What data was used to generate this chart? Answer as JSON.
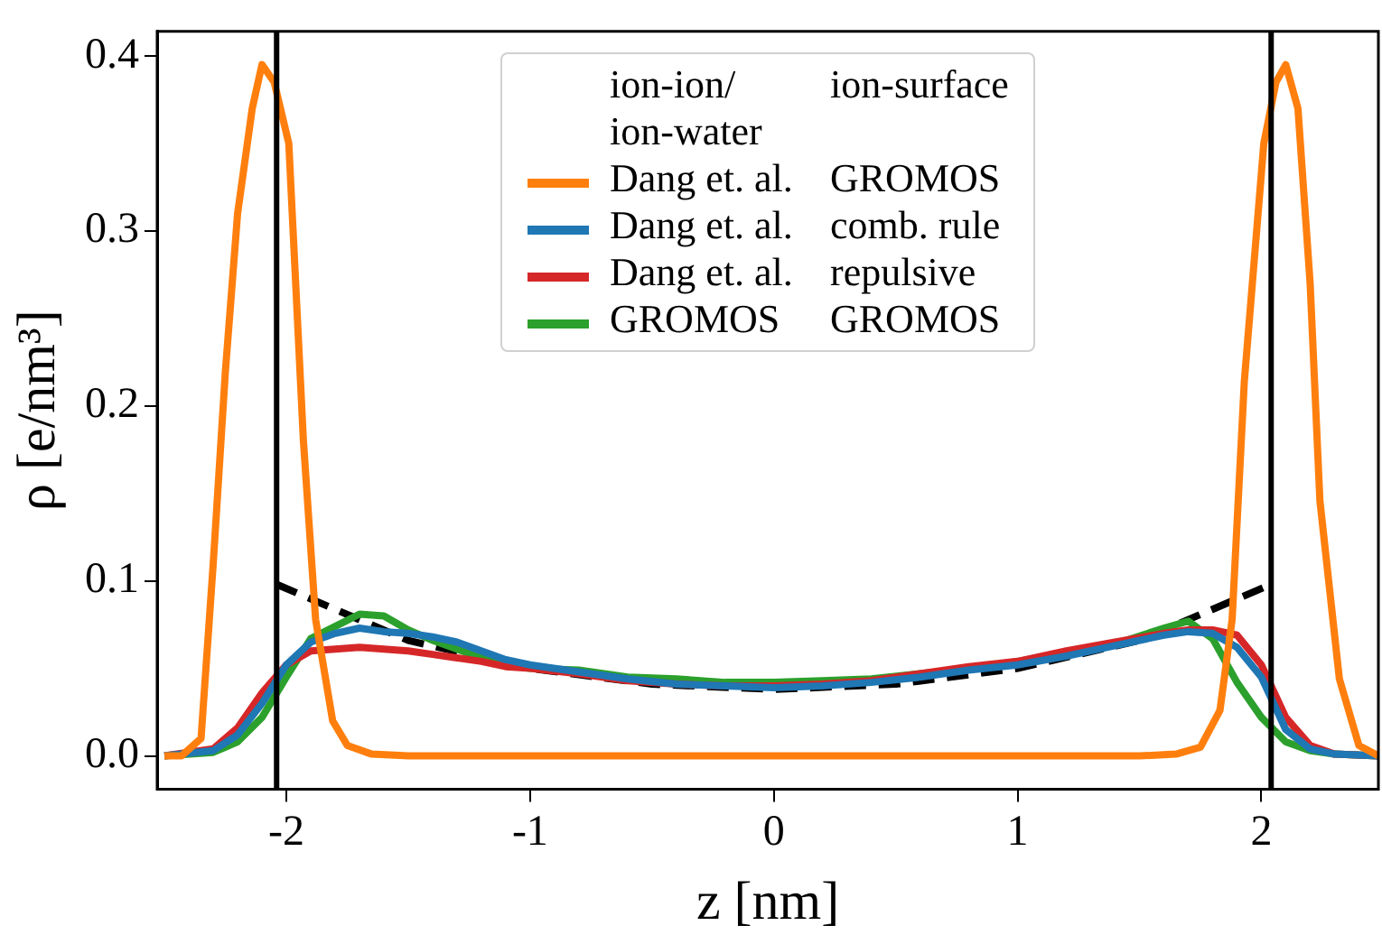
{
  "chart_data": {
    "type": "line",
    "xlabel": "z [nm]",
    "ylabel": "ρ [e/nm³]",
    "legend_title": "ion-ion/ ion-water  ion-surface",
    "xlim": [
      -2.53,
      2.48
    ],
    "xticks": [
      -2,
      -1,
      0,
      1,
      2
    ],
    "ylim": [
      -0.019,
      0.414
    ],
    "yticks": [
      {
        "value": 0,
        "label": "0.0"
      },
      0.1,
      0.2,
      0.3,
      0.4
    ],
    "grid": false,
    "legend": "top",
    "marker": "none",
    "ref_lines": [
      {
        "axis": "x",
        "value": -2.04,
        "color": "#000000",
        "line_style": "solid"
      },
      {
        "axis": "x",
        "value": 2.04,
        "color": "#000000",
        "line_style": "solid"
      }
    ],
    "series": [
      {
        "name": "Dang et. al.  GROMOS",
        "color": "#ff7f0e",
        "x": [
          -2.5,
          -2.43,
          -2.35,
          -2.3,
          -2.25,
          -2.2,
          -2.14,
          -2.1,
          -2.05,
          -1.99,
          -1.93,
          -1.88,
          -1.81,
          -1.75,
          -1.65,
          -1.5,
          0,
          1.5,
          1.65,
          1.75,
          1.83,
          1.88,
          1.93,
          2.01,
          2.06,
          2.1,
          2.15,
          2.2,
          2.24,
          2.32,
          2.4,
          2.48
        ],
        "values": [
          0,
          0,
          0.01,
          0.11,
          0.22,
          0.31,
          0.37,
          0.395,
          0.385,
          0.35,
          0.18,
          0.078,
          0.02,
          0.006,
          0.001,
          0,
          0,
          0,
          0.001,
          0.005,
          0.026,
          0.078,
          0.214,
          0.35,
          0.385,
          0.395,
          0.37,
          0.27,
          0.146,
          0.044,
          0.006,
          0
        ]
      },
      {
        "name": "Dang et. al.  comb. rule",
        "color": "#1f77b4",
        "x": [
          -2.5,
          -2.3,
          -2.2,
          -2.1,
          -2.0,
          -1.9,
          -1.8,
          -1.7,
          -1.6,
          -1.5,
          -1.4,
          -1.3,
          -1.2,
          -1.1,
          -1.0,
          -0.8,
          -0.6,
          -0.4,
          -0.2,
          0,
          0.2,
          0.4,
          0.6,
          0.8,
          1.0,
          1.2,
          1.4,
          1.6,
          1.7,
          1.8,
          1.9,
          2.0,
          2.1,
          2.2,
          2.3,
          2.48
        ],
        "values": [
          0,
          0.003,
          0.012,
          0.03,
          0.052,
          0.065,
          0.07,
          0.073,
          0.071,
          0.07,
          0.068,
          0.065,
          0.06,
          0.055,
          0.052,
          0.048,
          0.044,
          0.041,
          0.04,
          0.039,
          0.04,
          0.042,
          0.045,
          0.049,
          0.052,
          0.057,
          0.063,
          0.069,
          0.071,
          0.07,
          0.062,
          0.045,
          0.015,
          0.004,
          0.001,
          0
        ]
      },
      {
        "name": "Dang et. al.  repulsive",
        "color": "#d62728",
        "x": [
          -2.5,
          -2.3,
          -2.2,
          -2.1,
          -2.0,
          -1.9,
          -1.8,
          -1.7,
          -1.6,
          -1.5,
          -1.4,
          -1.3,
          -1.2,
          -1.1,
          -1.0,
          -0.8,
          -0.6,
          -0.4,
          -0.2,
          0,
          0.2,
          0.4,
          0.6,
          0.8,
          1.0,
          1.2,
          1.4,
          1.6,
          1.7,
          1.8,
          1.9,
          2.0,
          2.1,
          2.2,
          2.3,
          2.48
        ],
        "values": [
          0,
          0.004,
          0.016,
          0.036,
          0.052,
          0.06,
          0.061,
          0.062,
          0.061,
          0.06,
          0.058,
          0.056,
          0.054,
          0.051,
          0.05,
          0.047,
          0.043,
          0.041,
          0.04,
          0.04,
          0.041,
          0.043,
          0.047,
          0.051,
          0.054,
          0.06,
          0.065,
          0.07,
          0.072,
          0.072,
          0.069,
          0.052,
          0.022,
          0.006,
          0.001,
          0
        ]
      },
      {
        "name": "GROMOS  GROMOS",
        "color": "#2ca02c",
        "x": [
          -2.5,
          -2.3,
          -2.2,
          -2.1,
          -2.0,
          -1.9,
          -1.8,
          -1.7,
          -1.6,
          -1.5,
          -1.4,
          -1.3,
          -1.2,
          -1.1,
          -1.0,
          -0.8,
          -0.6,
          -0.4,
          -0.2,
          0,
          0.2,
          0.4,
          0.6,
          0.8,
          1.0,
          1.2,
          1.4,
          1.6,
          1.7,
          1.8,
          1.9,
          2.0,
          2.1,
          2.2,
          2.3,
          2.48
        ],
        "values": [
          0,
          0.002,
          0.008,
          0.022,
          0.045,
          0.067,
          0.074,
          0.081,
          0.08,
          0.072,
          0.066,
          0.061,
          0.056,
          0.052,
          0.05,
          0.049,
          0.045,
          0.044,
          0.042,
          0.042,
          0.043,
          0.044,
          0.047,
          0.05,
          0.054,
          0.059,
          0.064,
          0.073,
          0.077,
          0.067,
          0.042,
          0.022,
          0.008,
          0.003,
          0.001,
          0
        ]
      },
      {
        "color": "#000000",
        "line_style": "dashed",
        "x": [
          -2.04,
          -1.5,
          -1,
          -0.5,
          0,
          0.5,
          1,
          1.5,
          2.04
        ],
        "values": [
          0.098,
          0.066,
          0.05,
          0.041,
          0.038,
          0.041,
          0.05,
          0.066,
          0.098
        ]
      }
    ]
  }
}
